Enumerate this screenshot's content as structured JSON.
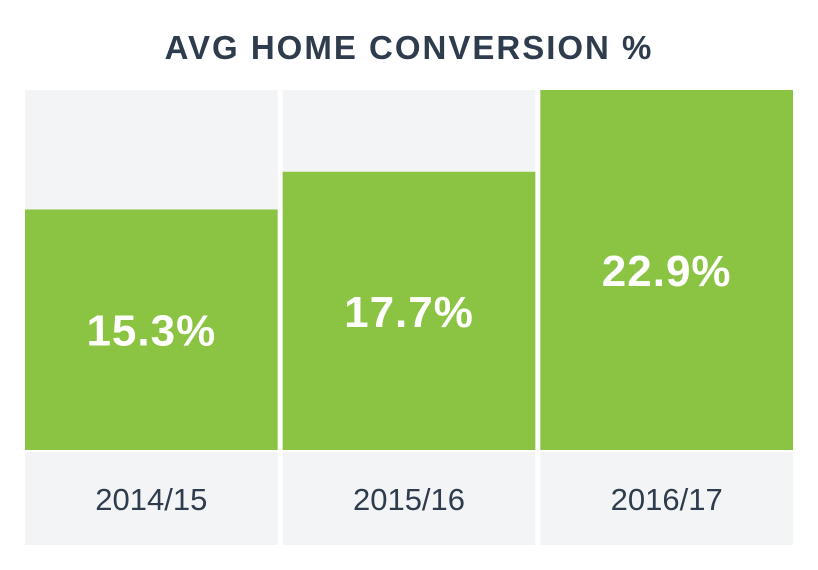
{
  "chart_data": {
    "type": "bar",
    "title": "AVG HOME CONVERSION %",
    "xlabel": "",
    "ylabel": "",
    "categories": [
      "2014/15",
      "2015/16",
      "2016/17"
    ],
    "values": [
      15.3,
      17.7,
      22.9
    ],
    "value_labels": [
      "15.3%",
      "17.7%",
      "22.9%"
    ],
    "ylim": [
      0,
      22.9
    ],
    "grid": false,
    "legend": "none",
    "colors": {
      "bar": "#8bc443",
      "panel_background": "#f3f4f5",
      "title_text": "#2e3c4d",
      "category_text": "#2e3c4d",
      "value_text": "#ffffff"
    }
  }
}
